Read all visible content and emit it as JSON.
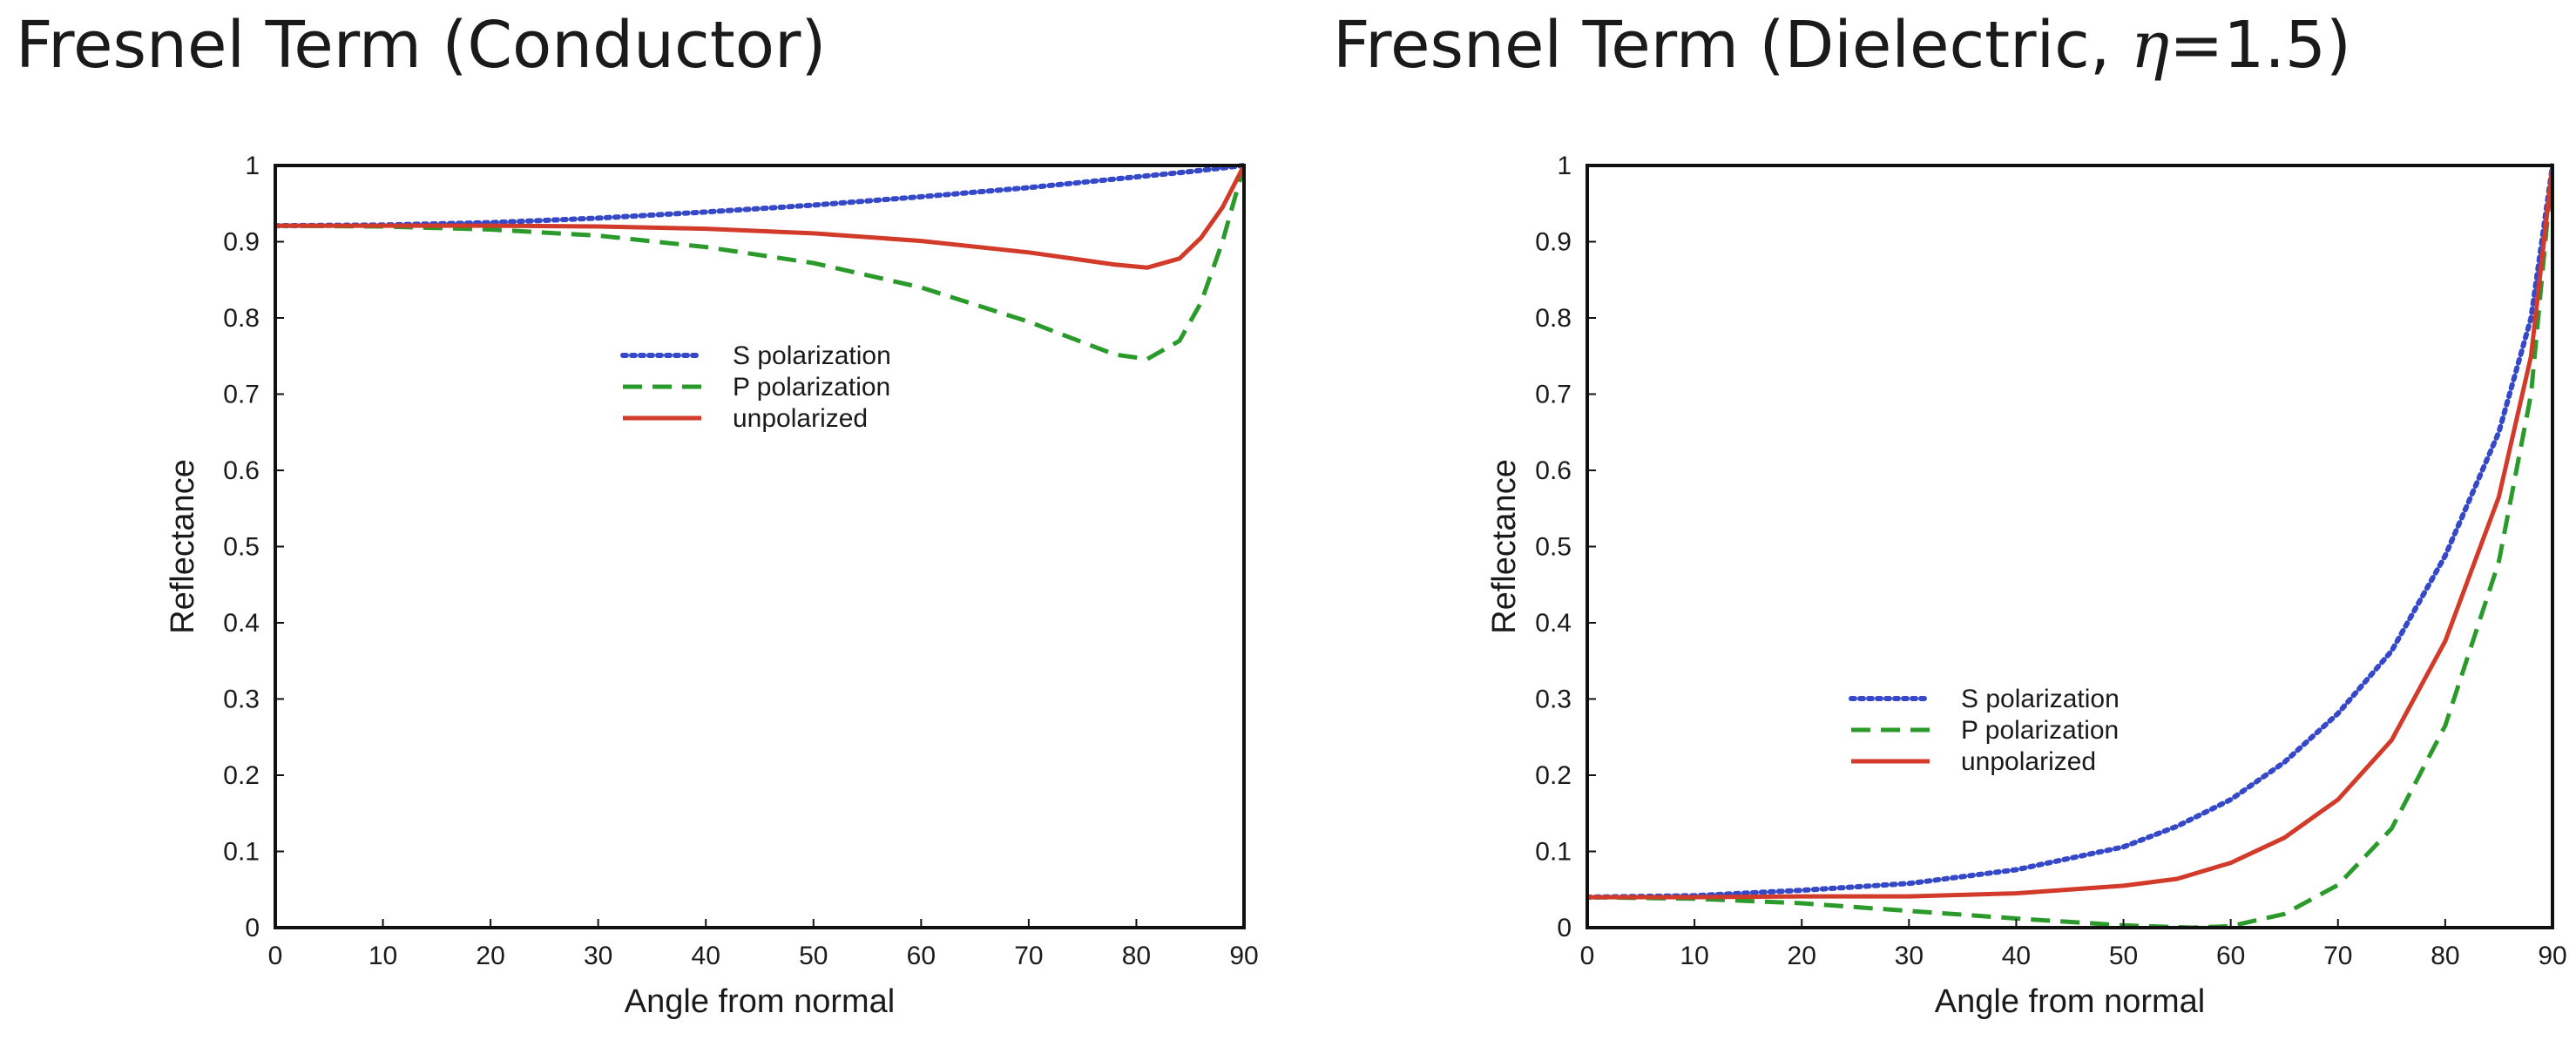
{
  "titles": {
    "left": "Fresnel Term (Conductor)",
    "right_prefix": "Fresnel Term (Dielectric, ",
    "right_symbol": "η",
    "right_suffix": "=1.5)"
  },
  "chart_data": [
    {
      "type": "line",
      "title": "Fresnel Term (Conductor)",
      "xlabel": "Angle from normal",
      "ylabel": "Reflectance",
      "xlim": [
        0,
        90
      ],
      "ylim": [
        0,
        1
      ],
      "xticks": [
        0,
        10,
        20,
        30,
        40,
        50,
        60,
        70,
        80,
        90
      ],
      "xtick_labels": [
        "0",
        "10",
        "20",
        "30",
        "40",
        "50",
        "60",
        "70",
        "80",
        "90"
      ],
      "yticks": [
        0,
        0.1,
        0.2,
        0.3,
        0.4,
        0.5,
        0.6,
        0.7,
        0.8,
        0.9,
        1
      ],
      "ytick_labels": [
        "0",
        "0.1",
        "0.2",
        "0.3",
        "0.4",
        "0.5",
        "0.6",
        "0.7",
        "0.8",
        "0.9",
        "1"
      ],
      "grid": false,
      "legend_position": "center",
      "series": [
        {
          "name": "S polarization",
          "color": "#3548c8",
          "style": "dotted",
          "x": [
            0,
            10,
            20,
            30,
            40,
            50,
            60,
            70,
            80,
            85,
            90
          ],
          "y": [
            0.921,
            0.922,
            0.925,
            0.931,
            0.939,
            0.948,
            0.959,
            0.971,
            0.985,
            0.992,
            1.0
          ]
        },
        {
          "name": "P polarization",
          "color": "#2a9a2a",
          "style": "dashed",
          "x": [
            0,
            10,
            20,
            30,
            40,
            50,
            60,
            70,
            75,
            78,
            81,
            84,
            86,
            88,
            90
          ],
          "y": [
            0.921,
            0.92,
            0.916,
            0.908,
            0.893,
            0.872,
            0.84,
            0.795,
            0.768,
            0.752,
            0.746,
            0.77,
            0.82,
            0.9,
            1.0
          ]
        },
        {
          "name": "unpolarized",
          "color": "#d23a2a",
          "style": "solid",
          "x": [
            0,
            10,
            20,
            30,
            40,
            50,
            60,
            70,
            75,
            78,
            81,
            84,
            86,
            88,
            90
          ],
          "y": [
            0.921,
            0.921,
            0.921,
            0.92,
            0.917,
            0.911,
            0.901,
            0.886,
            0.876,
            0.87,
            0.866,
            0.878,
            0.905,
            0.945,
            1.0
          ]
        }
      ]
    },
    {
      "type": "line",
      "title": "Fresnel Term (Dielectric, η=1.5)",
      "xlabel": "Angle from normal",
      "ylabel": "Reflectance",
      "xlim": [
        0,
        90
      ],
      "ylim": [
        0,
        1
      ],
      "xticks": [
        0,
        10,
        20,
        30,
        40,
        50,
        60,
        70,
        80,
        90
      ],
      "xtick_labels": [
        "0",
        "10",
        "20",
        "30",
        "40",
        "50",
        "60",
        "70",
        "80",
        "90"
      ],
      "yticks": [
        0,
        0.1,
        0.2,
        0.3,
        0.4,
        0.5,
        0.6,
        0.7,
        0.8,
        0.9,
        1
      ],
      "ytick_labels": [
        "0",
        "0.1",
        "0.2",
        "0.3",
        "0.4",
        "0.5",
        "0.6",
        "0.7",
        "0.8",
        "0.9",
        "1"
      ],
      "grid": false,
      "legend_position": "lower-center",
      "series": [
        {
          "name": "S polarization",
          "color": "#3548c8",
          "style": "dotted",
          "x": [
            0,
            10,
            20,
            30,
            40,
            50,
            55,
            60,
            65,
            70,
            75,
            80,
            85,
            88,
            90
          ],
          "y": [
            0.04,
            0.042,
            0.049,
            0.058,
            0.076,
            0.106,
            0.133,
            0.168,
            0.217,
            0.281,
            0.363,
            0.488,
            0.65,
            0.8,
            1.0
          ]
        },
        {
          "name": "P polarization",
          "color": "#2a9a2a",
          "style": "dashed",
          "x": [
            0,
            10,
            20,
            30,
            40,
            50,
            56.3,
            60,
            65,
            70,
            75,
            80,
            85,
            88,
            90
          ],
          "y": [
            0.04,
            0.038,
            0.032,
            0.022,
            0.012,
            0.003,
            0.0,
            0.002,
            0.018,
            0.056,
            0.13,
            0.265,
            0.48,
            0.7,
            1.0
          ]
        },
        {
          "name": "unpolarized",
          "color": "#d23a2a",
          "style": "solid",
          "x": [
            0,
            10,
            20,
            30,
            40,
            50,
            55,
            60,
            65,
            70,
            75,
            80,
            85,
            88,
            90
          ],
          "y": [
            0.04,
            0.04,
            0.041,
            0.041,
            0.045,
            0.055,
            0.064,
            0.085,
            0.118,
            0.168,
            0.246,
            0.376,
            0.565,
            0.75,
            1.0
          ]
        }
      ]
    }
  ]
}
